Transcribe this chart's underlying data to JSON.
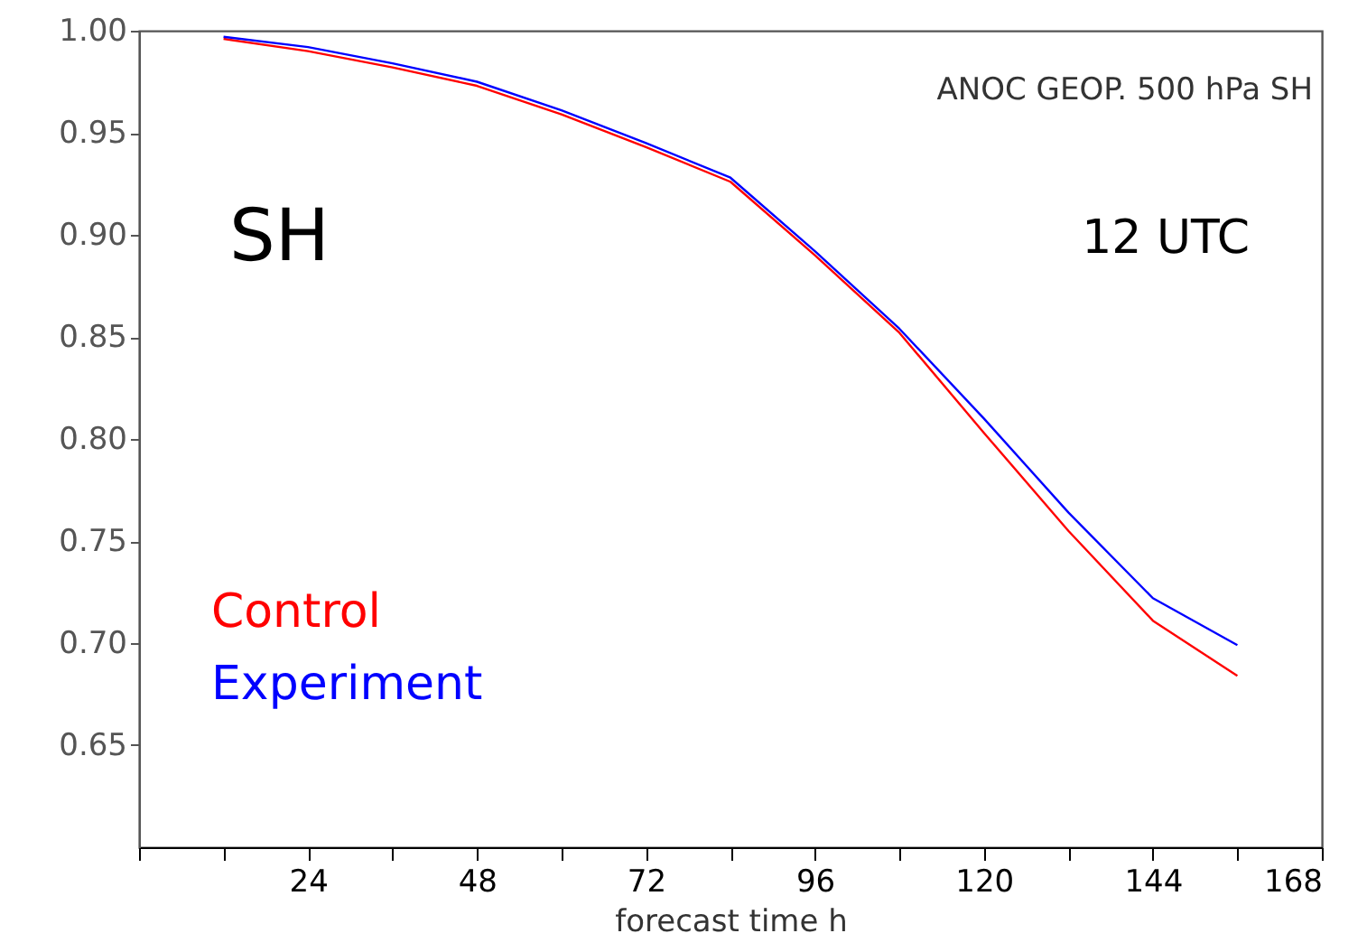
{
  "chart_data": {
    "type": "line",
    "xlabel": "forecast time    h",
    "x": [
      12,
      24,
      36,
      48,
      60,
      72,
      84,
      96,
      108,
      120,
      132,
      144,
      156
    ],
    "series": [
      {
        "name": "Control",
        "color": "#ff0000",
        "values": [
          0.996,
          0.99,
          0.982,
          0.973,
          0.959,
          0.943,
          0.926,
          0.89,
          0.852,
          0.803,
          0.755,
          0.711,
          0.684
        ]
      },
      {
        "name": "Experiment",
        "color": "#0000ff",
        "values": [
          0.997,
          0.992,
          0.984,
          0.975,
          0.961,
          0.945,
          0.928,
          0.892,
          0.854,
          0.81,
          0.764,
          0.722,
          0.699
        ]
      }
    ],
    "xlim": [
      0,
      168
    ],
    "xticks": [
      {
        "value": 0,
        "label": null
      },
      {
        "value": 12,
        "label": null
      },
      24,
      {
        "value": 36,
        "label": null
      },
      48,
      {
        "value": 60,
        "label": null
      },
      72,
      {
        "value": 84,
        "label": null
      },
      96,
      {
        "value": 108,
        "label": null
      },
      120,
      {
        "value": 132,
        "label": null
      },
      144,
      {
        "value": 156,
        "label": null
      },
      168
    ],
    "ylim": [
      0.6,
      1.0
    ],
    "yticks": [
      {
        "value": 0.65,
        "label": "0.65"
      },
      {
        "value": 0.7,
        "label": "0.70"
      },
      {
        "value": 0.75,
        "label": "0.75"
      },
      {
        "value": 0.8,
        "label": "0.80"
      },
      {
        "value": 0.85,
        "label": "0.85"
      },
      {
        "value": 0.9,
        "label": "0.90"
      },
      {
        "value": 0.95,
        "label": "0.95"
      },
      {
        "value": 1.0,
        "label": "1.00"
      }
    ],
    "annotations": [
      "ANOC GEOP. 500 hPa SH",
      "SH",
      "12 UTC"
    ],
    "legend": "bottom left",
    "grid": false,
    "marker": "none",
    "line_style": "solid"
  }
}
